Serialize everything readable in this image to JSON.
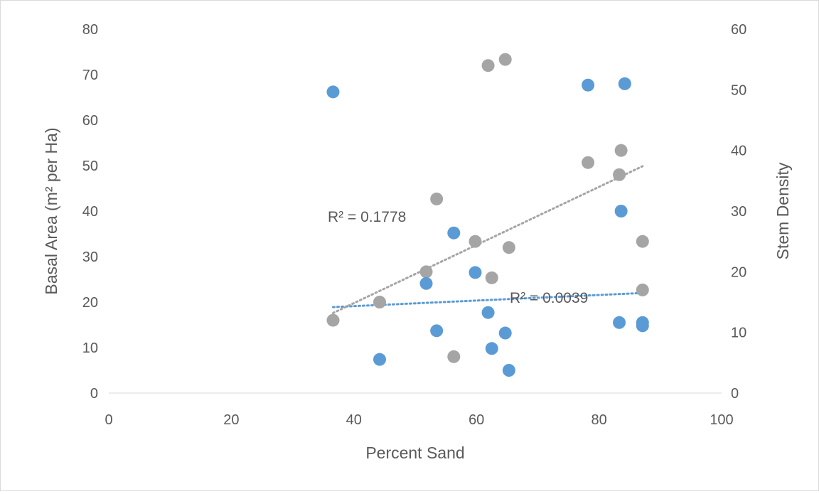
{
  "chart_data": {
    "type": "scatter",
    "title": "",
    "xlabel": "Percent Sand",
    "ylabel_left": "Basal Area (m² per Ha)",
    "ylabel_right": "Stem Density",
    "xlim": [
      0,
      100
    ],
    "ylim_left": [
      0,
      80
    ],
    "ylim_right": [
      0,
      60
    ],
    "x_ticks": [
      "0",
      "20",
      "40",
      "60",
      "80",
      "100"
    ],
    "y_left_ticks": [
      "0",
      "10",
      "20",
      "30",
      "40",
      "50",
      "60",
      "70",
      "80"
    ],
    "y_right_ticks": [
      "0",
      "10",
      "20",
      "30",
      "40",
      "50",
      "60"
    ],
    "grid": false,
    "legend": "none",
    "series": [
      {
        "axis": "left",
        "color": "#5b9bd5",
        "x": [
          36.6,
          44.2,
          51.8,
          53.5,
          56.3,
          59.8,
          61.9,
          62.5,
          64.7,
          65.3,
          78.2,
          83.3,
          83.6,
          84.2,
          87.1,
          87.1
        ],
        "y": [
          66.2,
          7.4,
          24.1,
          13.7,
          35.2,
          26.5,
          17.7,
          9.8,
          13.2,
          5.0,
          67.7,
          15.5,
          40.0,
          68.0,
          15.5,
          14.8
        ]
      },
      {
        "axis": "right",
        "color": "#a5a5a5",
        "x": [
          36.6,
          44.2,
          51.8,
          53.5,
          56.3,
          59.8,
          61.9,
          62.5,
          64.7,
          65.3,
          78.2,
          83.3,
          83.6,
          84.2,
          87.1,
          87.1
        ],
        "y": [
          12.0,
          15.0,
          20.0,
          32.0,
          6.0,
          25.0,
          54.0,
          19.0,
          55.0,
          24.0,
          38.0,
          36.0,
          40.0,
          51.0,
          25.0,
          17.0
        ]
      }
    ],
    "trendlines": [
      {
        "axis": "left",
        "color": "#5b9bd5",
        "x": [
          36.6,
          87.1
        ],
        "y": [
          18.9,
          22.0
        ],
        "label": "R² = 0.0039"
      },
      {
        "axis": "right",
        "color": "#a5a5a5",
        "x": [
          36.6,
          87.1
        ],
        "y": [
          13.2,
          37.4
        ],
        "label": "R² = 0.1778"
      }
    ]
  }
}
